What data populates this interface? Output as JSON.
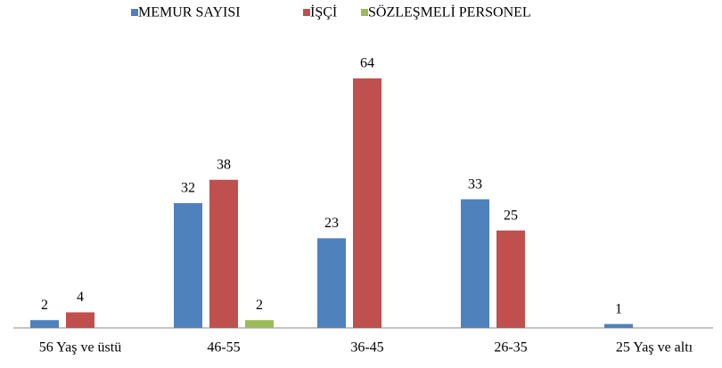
{
  "chart_data": {
    "type": "bar",
    "categories": [
      "56 Yaş ve üstü",
      "46-55",
      "36-45",
      "26-35",
      "25 Yaş ve altı"
    ],
    "series": [
      {
        "name": "MEMUR SAYISI",
        "color": "#4f81bd",
        "values": [
          2,
          32,
          23,
          33,
          1
        ]
      },
      {
        "name": "İŞÇİ",
        "color": "#c0504d",
        "values": [
          4,
          38,
          64,
          25,
          null
        ]
      },
      {
        "name": "SÖZLEŞMELİ PERSONEL",
        "color": "#9bbb59",
        "values": [
          null,
          2,
          null,
          null,
          null
        ]
      }
    ],
    "legend": "top"
  }
}
